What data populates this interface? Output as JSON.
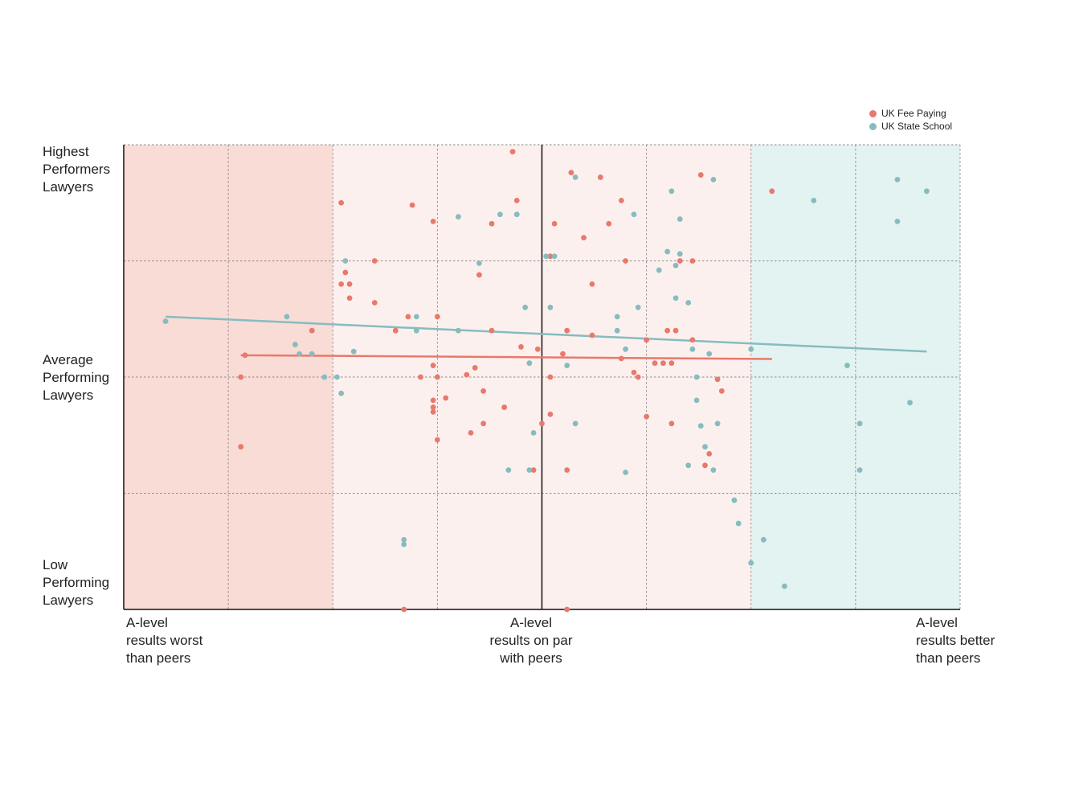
{
  "colors": {
    "fee_paying": "#e8796c",
    "state_school": "#86bcbf",
    "zone_worse": "#f9dcd6",
    "zone_par": "#fcf0ee",
    "zone_better": "#e3f3f1",
    "grid": "#8a8a8a",
    "axis": "#111111"
  },
  "chart_data": {
    "type": "scatter",
    "x_range": [
      -10,
      10
    ],
    "y_range": [
      -5,
      5
    ],
    "ytick_labels": [
      {
        "y": 5,
        "text": "Highest\nPerformers\nLawyers"
      },
      {
        "y": 0,
        "text": "Average\nPerforming\nLawyers"
      },
      {
        "y": -5,
        "text": "Low\nPerforming\nLawyers"
      }
    ],
    "xtick_labels": [
      {
        "x": -10,
        "text": "A-level\nresults worst\nthan peers"
      },
      {
        "x": 0,
        "text": "A-level\nresults on par\nwith peers"
      },
      {
        "x": 10,
        "text": "A-level\nresults better\nthan peers"
      }
    ],
    "grid": true,
    "legend_position": "top-right",
    "series": [
      {
        "name": "UK Fee Paying",
        "color": "#e8796c",
        "trend": [
          [
            -7.2,
            0.47
          ],
          [
            5.5,
            0.39
          ]
        ],
        "points": [
          [
            -7.2,
            0.0
          ],
          [
            -7.1,
            0.47
          ],
          [
            -7.2,
            -1.5
          ],
          [
            -5.5,
            1.0
          ],
          [
            -4.8,
            3.75
          ],
          [
            -4.8,
            2.0
          ],
          [
            -4.7,
            2.25
          ],
          [
            -4.6,
            2.0
          ],
          [
            -4.6,
            1.7
          ],
          [
            -4.0,
            2.5
          ],
          [
            -4.0,
            1.6
          ],
          [
            -3.5,
            1.0
          ],
          [
            -3.2,
            1.3
          ],
          [
            -3.1,
            3.7
          ],
          [
            -2.6,
            3.35
          ],
          [
            -2.5,
            1.3
          ],
          [
            -2.6,
            0.25
          ],
          [
            -2.6,
            -0.65
          ],
          [
            -2.5,
            -1.35
          ],
          [
            -2.6,
            -0.5
          ],
          [
            -2.5,
            0.0
          ],
          [
            -2.3,
            -0.45
          ],
          [
            -1.5,
            2.2
          ],
          [
            -1.6,
            0.2
          ],
          [
            -0.7,
            4.85
          ],
          [
            -0.6,
            3.8
          ],
          [
            -1.2,
            3.3
          ],
          [
            -1.7,
            -1.2
          ],
          [
            -1.4,
            -1.0
          ],
          [
            -0.9,
            -0.65
          ],
          [
            -0.5,
            0.65
          ],
          [
            -0.1,
            0.6
          ],
          [
            0.2,
            0.0
          ],
          [
            0.5,
            0.5
          ],
          [
            0.2,
            2.6
          ],
          [
            0.3,
            3.3
          ],
          [
            -1.4,
            -0.3
          ],
          [
            -1.2,
            1.0
          ],
          [
            0.6,
            1.0
          ],
          [
            0.7,
            4.4
          ],
          [
            1.0,
            3.0
          ],
          [
            1.2,
            2.0
          ],
          [
            1.2,
            0.9
          ],
          [
            1.4,
            4.3
          ],
          [
            1.6,
            3.3
          ],
          [
            1.9,
            0.4
          ],
          [
            1.9,
            3.8
          ],
          [
            2.0,
            2.5
          ],
          [
            2.2,
            0.1
          ],
          [
            2.3,
            0.0
          ],
          [
            2.5,
            -0.85
          ],
          [
            2.5,
            0.8
          ],
          [
            2.7,
            0.3
          ],
          [
            2.9,
            0.3
          ],
          [
            3.0,
            1.0
          ],
          [
            3.1,
            0.3
          ],
          [
            3.1,
            -1.0
          ],
          [
            3.2,
            1.0
          ],
          [
            3.3,
            2.5
          ],
          [
            -1.8,
            0.05
          ],
          [
            -2.6,
            -0.75
          ],
          [
            -2.9,
            0.0
          ],
          [
            -0.2,
            -2.0
          ],
          [
            0.0,
            -1.0
          ],
          [
            0.2,
            -0.8
          ],
          [
            0.6,
            -2.0
          ],
          [
            -3.3,
            -5.0
          ],
          [
            0.6,
            -5.0
          ],
          [
            5.5,
            4.0
          ],
          [
            3.8,
            4.35
          ],
          [
            3.9,
            -1.9
          ],
          [
            4.3,
            -0.3
          ],
          [
            4.0,
            -1.65
          ],
          [
            4.2,
            -0.05
          ],
          [
            3.6,
            0.8
          ],
          [
            3.6,
            2.5
          ]
        ]
      },
      {
        "name": "UK State School",
        "color": "#86bcbf",
        "trend": [
          [
            -9.0,
            1.3
          ],
          [
            9.2,
            0.55
          ]
        ],
        "points": [
          [
            -9.0,
            1.2
          ],
          [
            -6.1,
            1.3
          ],
          [
            -5.9,
            0.7
          ],
          [
            -5.8,
            0.5
          ],
          [
            -5.5,
            0.5
          ],
          [
            -5.2,
            0.0
          ],
          [
            -4.5,
            0.55
          ],
          [
            -4.7,
            2.5
          ],
          [
            -4.9,
            0.0
          ],
          [
            -4.8,
            -0.35
          ],
          [
            -3.3,
            -3.5
          ],
          [
            -3.0,
            1.0
          ],
          [
            -3.0,
            1.3
          ],
          [
            -2.0,
            1.0
          ],
          [
            -2.0,
            3.45
          ],
          [
            -1.5,
            2.45
          ],
          [
            -1.0,
            3.5
          ],
          [
            -0.6,
            3.5
          ],
          [
            -0.4,
            1.5
          ],
          [
            -0.3,
            0.3
          ],
          [
            -0.2,
            -1.2
          ],
          [
            -0.3,
            -2.0
          ],
          [
            -0.8,
            -2.0
          ],
          [
            0.1,
            2.6
          ],
          [
            0.2,
            1.5
          ],
          [
            0.3,
            2.6
          ],
          [
            0.6,
            0.25
          ],
          [
            0.8,
            4.3
          ],
          [
            0.8,
            -1.0
          ],
          [
            1.8,
            1.0
          ],
          [
            1.8,
            1.3
          ],
          [
            2.0,
            0.6
          ],
          [
            2.2,
            3.5
          ],
          [
            2.3,
            1.5
          ],
          [
            2.8,
            2.3
          ],
          [
            3.0,
            2.7
          ],
          [
            3.2,
            2.4
          ],
          [
            3.3,
            3.4
          ],
          [
            3.5,
            1.6
          ],
          [
            3.6,
            0.6
          ],
          [
            3.7,
            0.0
          ],
          [
            3.7,
            -0.5
          ],
          [
            3.8,
            -1.05
          ],
          [
            3.9,
            -1.5
          ],
          [
            4.1,
            -2.0
          ],
          [
            4.6,
            -2.65
          ],
          [
            4.7,
            -3.15
          ],
          [
            5.0,
            -4.0
          ],
          [
            5.3,
            -3.5
          ],
          [
            5.8,
            -4.5
          ],
          [
            6.5,
            3.8
          ],
          [
            7.3,
            0.25
          ],
          [
            7.6,
            -1.0
          ],
          [
            7.6,
            -2.0
          ],
          [
            8.5,
            4.25
          ],
          [
            8.5,
            3.35
          ],
          [
            8.8,
            -0.55
          ],
          [
            9.2,
            4.0
          ],
          [
            4.1,
            4.25
          ],
          [
            3.1,
            4.0
          ],
          [
            3.3,
            2.65
          ],
          [
            -3.3,
            -3.6
          ],
          [
            2.0,
            -2.05
          ],
          [
            3.5,
            -1.9
          ],
          [
            5.0,
            0.6
          ],
          [
            4.0,
            0.5
          ],
          [
            4.2,
            -1.0
          ],
          [
            3.2,
            1.7
          ]
        ]
      }
    ]
  }
}
